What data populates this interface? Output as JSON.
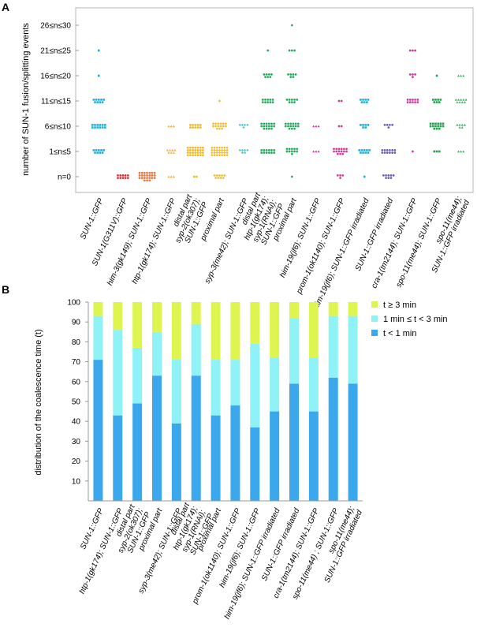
{
  "panel_a": {
    "label": "A",
    "chart_data": {
      "type": "scatter",
      "title": "",
      "ylabel": "number of SUN-1 fusion/splitting events",
      "y_categories": [
        "n=0",
        "1≤n≤5",
        "6≤n≤10",
        "11≤n≤15",
        "16≤n≤20",
        "21≤n≤25",
        "26≤n≤30"
      ],
      "categories": [
        "SUN-1::GFP",
        "SUN-1(G311V)::GFP",
        "him-3(gk149); SUN-1::GFP",
        "htp-1(gk174); SUN-1::GFP",
        "syp-2(ok307); SUN-1::GFP distal part",
        "syp-2(ok307); SUN-1::GFP proximal part",
        "syp-3(me42); SUN-1::GFP",
        "htp-1(gk174); syp-1(RNAi); SUN-1::GFP distal part",
        "htp-1(gk174); syp-1(RNAi); SUN-1::GFP proximal part",
        "him-19(jf6); SUN-1::GFP",
        "prom-1(ok1140); SUN-1::GFP",
        "him-19(jf6); SUN-1::GFP irradiated",
        "SUN-1::GFP irradiated",
        "cra-1(tm2144); SUN-1::GFP",
        "spo-11(me44); SUN-1::GFP",
        "spo-11(me44); SUN-1::GFP irradiated"
      ],
      "category_labels": [
        [
          "SUN-1::GFP"
        ],
        [
          "SUN-1(G311V)::GFP"
        ],
        [
          "him-3(gk149); SUN-1::GFP"
        ],
        [
          "htp-1(gk174); SUN-1::GFP"
        ],
        [
          "distal part",
          "syp-2(ok307);",
          "SUN-1::GFP"
        ],
        [
          "proximal part"
        ],
        [
          "syp-3(me42); SUN-1::GFP"
        ],
        [
          "distal part",
          "htp-1(gk174);",
          "syp-1(RNAi);",
          "SUN-1::GFP"
        ],
        [
          "proximal part"
        ],
        [
          "him-19(jf6); SUN-1::GFP"
        ],
        [
          "prom-1(ok1140); SUN-1::GFP"
        ],
        [
          "him-19(jf6); SUN-1::GFP irradiated"
        ],
        [
          "SUN-1::GFP irradiated"
        ],
        [
          "cra-1(tm2144); SUN-1::GFP"
        ],
        [
          "spo-11(me44); SUN-1::GFP"
        ],
        [
          "spo-11(me44);",
          "SUN-1::GFP irradiated"
        ]
      ],
      "series": [
        {
          "counts": [
            0,
            9,
            12,
            9,
            1,
            1,
            0
          ],
          "color": "#1bb0d8",
          "marker": "square"
        },
        {
          "counts": [
            10,
            0,
            0,
            0,
            0,
            0,
            0
          ],
          "color": "#e8262f",
          "marker": "circle"
        },
        {
          "counts": [
            24,
            0,
            0,
            0,
            0,
            0,
            0
          ],
          "color": "#e8733a",
          "marker": "circle"
        },
        {
          "counts": [
            3,
            7,
            3,
            0,
            0,
            0,
            0
          ],
          "color": "#f3a93c",
          "marker": "triangle"
        },
        {
          "counts": [
            2,
            28,
            10,
            0,
            0,
            0,
            0
          ],
          "color": "#f2b61c",
          "marker": "circle"
        },
        {
          "counts": [
            9,
            28,
            15,
            1,
            0,
            0,
            0
          ],
          "color": "#f2b61c",
          "marker": "diamond"
        },
        {
          "counts": [
            0,
            6,
            5,
            0,
            0,
            0,
            0
          ],
          "color": "#55c5c9",
          "marker": "diamond"
        },
        {
          "counts": [
            0,
            12,
            16,
            10,
            7,
            1,
            0
          ],
          "color": "#1eaa58",
          "marker": "circle"
        },
        {
          "counts": [
            1,
            11,
            15,
            8,
            6,
            3,
            1
          ],
          "color": "#1eaa58",
          "marker": "circle"
        },
        {
          "counts": [
            0,
            3,
            3,
            0,
            0,
            0,
            0
          ],
          "color": "#c4379e",
          "marker": "triangle"
        },
        {
          "counts": [
            4,
            15,
            2,
            2,
            0,
            0,
            0
          ],
          "color": "#d93590",
          "marker": "circle"
        },
        {
          "counts": [
            1,
            9,
            6,
            7,
            0,
            0,
            0
          ],
          "color": "#1bb0d8",
          "marker": "square"
        },
        {
          "counts": [
            8,
            12,
            5,
            0,
            0,
            0,
            0
          ],
          "color": "#6e5bb6",
          "marker": "circle"
        },
        {
          "counts": [
            0,
            1,
            0,
            10,
            4,
            3,
            0
          ],
          "color": "#d92f9d",
          "marker": "circle"
        },
        {
          "counts": [
            0,
            3,
            15,
            7,
            1,
            0,
            0
          ],
          "color": "#20a34d",
          "marker": "square"
        },
        {
          "counts": [
            0,
            3,
            6,
            9,
            3,
            0,
            0
          ],
          "color": "#3daa62",
          "marker": "triangle"
        }
      ]
    }
  },
  "panel_b": {
    "label": "B",
    "chart_data": {
      "type": "bar",
      "stacked": true,
      "title": "",
      "ylabel": "distribution of the coalescence time (t)",
      "ylim": [
        0,
        100
      ],
      "yticks": [
        10,
        20,
        30,
        40,
        50,
        60,
        70,
        80,
        90,
        100
      ],
      "categories": [
        "SUN-1::GFP",
        "htp-1(gk174); SUN-1::GFP",
        "syp-2(ok307); SUN-1::GFP distal part",
        "syp-2(ok307); SUN-1::GFP proximal part",
        "syp-3(me42); SUN-1::GFP",
        "htp-1(gk174); syp-1(RNAi); SUN-1::GFP distal part",
        "htp-1(gk174); syp-1(RNAi); SUN-1::GFP proximal part",
        "prom-1(ok1140); SUN-1::GFP",
        "him-19(jf6); SUN-1::GFP",
        "him-19(jf6); SUN-1::GFP irradiated",
        "SUN-1::GFP irradiated",
        "cra-1(tm2144); SUN-1::GFP",
        "spo-11(me44) ; SUN-1::GFP",
        "spo-11(me44); SUN-1::GFP irradiated"
      ],
      "category_labels": [
        [
          "SUN-1::GFP"
        ],
        [
          "htp-1(gk174); SUN-1::GFP"
        ],
        [
          "distal part",
          "syp-2(ok307);",
          "SUN-1::GFP"
        ],
        [
          "proximal part"
        ],
        [
          "syp-3(me42); SUN-1::GFP"
        ],
        [
          "distal part",
          "htp-1(gk174);",
          "syp-1(RNAi);",
          "SUN-1::GFP"
        ],
        [
          "proximal part"
        ],
        [
          "prom-1(ok1140); SUN-1::GFP"
        ],
        [
          "him-19(jf6); SUN-1::GFP"
        ],
        [
          "him-19(jf6); SUN-1::GFP irradiated"
        ],
        [
          "SUN-1::GFP irradiated"
        ],
        [
          "cra-1(tm2144); SUN-1::GFP"
        ],
        [
          "spo-11(me44) ; SUN-1::GFP"
        ],
        [
          "spo-11(me44);",
          "SUN-1::GFP irradiated"
        ]
      ],
      "series": [
        {
          "name": "t < 1 min",
          "color": "#3ba8ee",
          "values": [
            71,
            43,
            49,
            63,
            39,
            63,
            43,
            48,
            37,
            45,
            59,
            45,
            62,
            59
          ]
        },
        {
          "name": "1 min ≤ t < 3 min",
          "color": "#8ef2f7",
          "values": [
            22,
            43,
            28,
            22,
            32,
            26,
            28,
            23,
            42,
            27,
            33,
            27,
            31,
            34
          ]
        },
        {
          "name": "t ≥ 3 min",
          "color": "#dff54f",
          "values": [
            7,
            14,
            23,
            15,
            29,
            11,
            29,
            29,
            21,
            28,
            8,
            28,
            7,
            7
          ]
        }
      ],
      "legend_order": [
        2,
        1,
        0
      ],
      "legend_position": "top-right"
    }
  }
}
